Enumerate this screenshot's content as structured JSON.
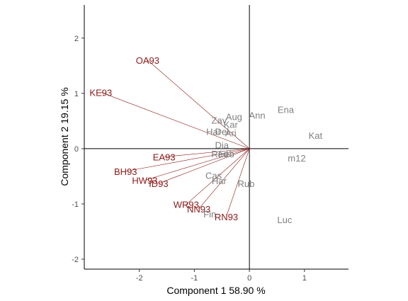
{
  "chart_data": {
    "type": "biplot",
    "xlabel": "Component 1 58.90 %",
    "ylabel": "Component 2 19.15 %",
    "xlim": [
      -3.0,
      1.8
    ],
    "ylim": [
      -2.18,
      2.6
    ],
    "x_ticks": [
      -2,
      -1,
      0,
      1
    ],
    "y_ticks": [
      -2,
      -1,
      0,
      1,
      2
    ],
    "reference_lines": {
      "x": 0,
      "y": 0
    },
    "grid": false,
    "colors": {
      "vectors": "#8b1a1a",
      "vector_labels": "#8b1a1a",
      "points": "#808080"
    },
    "vectors": [
      {
        "name": "OA93",
        "x": -1.85,
        "y": 1.6
      },
      {
        "name": "KE93",
        "x": -2.7,
        "y": 1.02
      },
      {
        "name": "EA93",
        "x": -1.55,
        "y": -0.15
      },
      {
        "name": "BH93",
        "x": -2.25,
        "y": -0.41
      },
      {
        "name": "HW93",
        "x": -1.9,
        "y": -0.57
      },
      {
        "name": "ID93",
        "x": -1.65,
        "y": -0.63
      },
      {
        "name": "WR93",
        "x": -1.15,
        "y": -1.01
      },
      {
        "name": "NN93",
        "x": -0.92,
        "y": -1.09
      },
      {
        "name": "RN93",
        "x": -0.42,
        "y": -1.23
      }
    ],
    "points": [
      {
        "name": "Zav",
        "x": -0.55,
        "y": 0.52
      },
      {
        "name": "Aug",
        "x": -0.28,
        "y": 0.58
      },
      {
        "name": "Ann",
        "x": 0.14,
        "y": 0.61
      },
      {
        "name": "Ena",
        "x": 0.66,
        "y": 0.71
      },
      {
        "name": "Kat",
        "x": 1.2,
        "y": 0.24
      },
      {
        "name": "Kar",
        "x": -0.34,
        "y": 0.44
      },
      {
        "name": "Har",
        "x": -0.65,
        "y": 0.31
      },
      {
        "name": "Del",
        "x": -0.5,
        "y": 0.31
      },
      {
        "name": "Ari",
        "x": -0.34,
        "y": 0.29
      },
      {
        "name": "Dia",
        "x": -0.5,
        "y": 0.07
      },
      {
        "name": "Rad",
        "x": -0.54,
        "y": -0.09
      },
      {
        "name": "Feb",
        "x": -0.42,
        "y": -0.09
      },
      {
        "name": "m12",
        "x": 0.86,
        "y": -0.17
      },
      {
        "name": "Cas",
        "x": -0.65,
        "y": -0.48
      },
      {
        "name": "Har",
        "x": -0.55,
        "y": -0.58
      },
      {
        "name": "Rub",
        "x": -0.06,
        "y": -0.63
      },
      {
        "name": "Fin",
        "x": -0.72,
        "y": -1.18
      },
      {
        "name": "Luc",
        "x": 0.64,
        "y": -1.28
      }
    ]
  }
}
